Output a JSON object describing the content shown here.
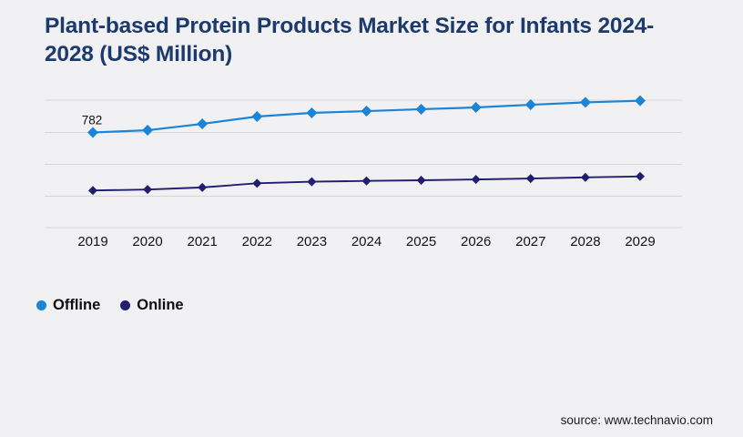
{
  "title": "Plant-based Protein Products Market Size for Infants 2024-2028 (US$ Million)",
  "source": "source: www.technavio.com",
  "colors": {
    "background": "#f1f1f4",
    "title": "#1d3a6c",
    "gridline": "#d6d6d9",
    "axis_text": "#141414",
    "offline": "#1b84d6",
    "online": "#211e70"
  },
  "chart_data": {
    "type": "line",
    "title": "Plant-based Protein Products Market Size for Infants 2024-2028 (US$ Million)",
    "x": [
      2019,
      2020,
      2021,
      2022,
      2023,
      2024,
      2025,
      2026,
      2027,
      2028,
      2029
    ],
    "x_tick_labels": [
      "2019",
      "2020",
      "2021",
      "2022",
      "2023",
      "2024",
      "2025",
      "2026",
      "2027",
      "2028",
      "2029"
    ],
    "series": [
      {
        "name": "Offline",
        "color": "#1b84d6",
        "marker": "diamond",
        "values": [
          782,
          796,
          836,
          882,
          905,
          916,
          928,
          939,
          956,
          971,
          981
        ]
      },
      {
        "name": "Online",
        "color": "#211e70",
        "marker": "diamond",
        "values": [
          418,
          424,
          437,
          463,
          473,
          478,
          482,
          487,
          493,
          500,
          506
        ]
      }
    ],
    "data_labels": [
      {
        "series": "Offline",
        "x": 2019,
        "text": "782"
      }
    ],
    "xlabel": "",
    "ylabel": "",
    "ylim": [
      180,
      1060
    ],
    "y_axis_labels_visible": false,
    "y_gridline_count": 5,
    "grid": "horizontal",
    "legend_position": "bottom-left"
  }
}
